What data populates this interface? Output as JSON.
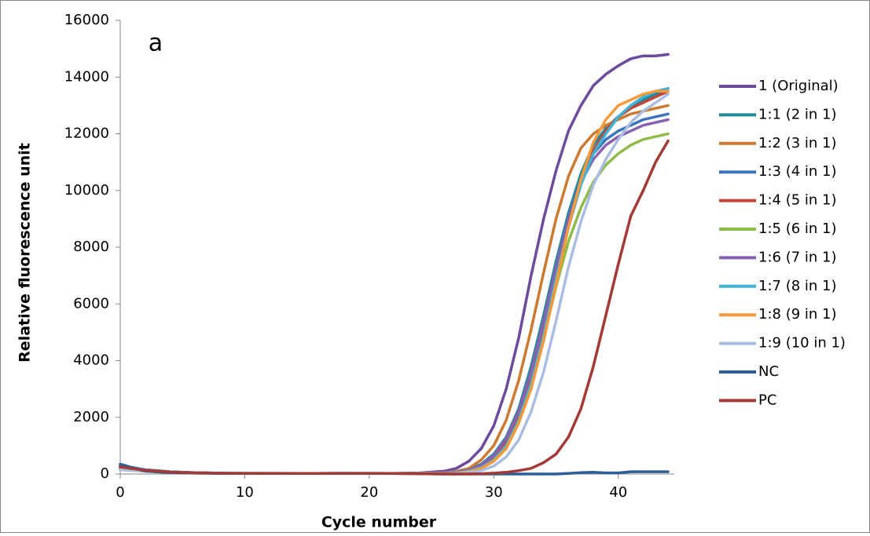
{
  "chart_data": {
    "type": "line",
    "annotation": "a",
    "xlabel": "Cycle number",
    "ylabel": "Relative fluorescence unit",
    "xlim": [
      0,
      44.5
    ],
    "xticks": [
      0,
      10,
      20,
      30,
      40
    ],
    "ylim": [
      0,
      16000
    ],
    "yticks": [
      0,
      2000,
      4000,
      6000,
      8000,
      10000,
      12000,
      14000,
      16000
    ],
    "grid": false,
    "legend": "right",
    "x": [
      0,
      2,
      4,
      6,
      8,
      10,
      12,
      14,
      16,
      18,
      20,
      22,
      24,
      26,
      27,
      28,
      29,
      30,
      31,
      32,
      33,
      34,
      35,
      36,
      37,
      38,
      39,
      40,
      41,
      42,
      43,
      44
    ],
    "series": [
      {
        "name": "1 (Original)",
        "color": "#6c4a9c",
        "values": [
          250,
          150,
          80,
          40,
          30,
          20,
          20,
          20,
          20,
          30,
          20,
          20,
          40,
          100,
          200,
          450,
          900,
          1700,
          3000,
          4800,
          7000,
          9000,
          10700,
          12100,
          13000,
          13700,
          14100,
          14400,
          14650,
          14750,
          14750,
          14800
        ]
      },
      {
        "name": "1:1 (2 in 1)",
        "color": "#1f8a9c",
        "values": [
          300,
          150,
          80,
          50,
          30,
          30,
          20,
          20,
          20,
          20,
          20,
          20,
          20,
          30,
          60,
          150,
          350,
          700,
          1300,
          2300,
          3800,
          5600,
          7500,
          9200,
          10600,
          11600,
          12200,
          12600,
          12900,
          13200,
          13400,
          13600
        ]
      },
      {
        "name": "1:2 (3 in 1)",
        "color": "#cc7a30",
        "values": [
          280,
          140,
          70,
          40,
          30,
          20,
          20,
          20,
          20,
          20,
          20,
          20,
          30,
          40,
          90,
          200,
          500,
          1000,
          1900,
          3300,
          5100,
          7100,
          9000,
          10500,
          11500,
          12000,
          12300,
          12500,
          12700,
          12800,
          12900,
          13000
        ]
      },
      {
        "name": "1:3 (4 in 1)",
        "color": "#3a76bd",
        "values": [
          300,
          150,
          80,
          50,
          30,
          20,
          20,
          20,
          20,
          20,
          20,
          20,
          20,
          30,
          60,
          130,
          300,
          600,
          1200,
          2100,
          3500,
          5300,
          7300,
          9000,
          10400,
          11300,
          11800,
          12100,
          12300,
          12500,
          12600,
          12700
        ]
      },
      {
        "name": "1:4 (5 in 1)",
        "color": "#c4443c",
        "values": [
          200,
          120,
          60,
          40,
          30,
          20,
          20,
          20,
          20,
          20,
          20,
          20,
          20,
          20,
          40,
          100,
          250,
          550,
          1100,
          2000,
          3300,
          5000,
          7000,
          8800,
          10300,
          11400,
          12100,
          12600,
          12900,
          13100,
          13300,
          13500
        ]
      },
      {
        "name": "1:5 (6 in 1)",
        "color": "#8fbb48",
        "values": [
          150,
          100,
          60,
          40,
          30,
          20,
          20,
          20,
          20,
          20,
          20,
          20,
          20,
          20,
          40,
          90,
          200,
          450,
          900,
          1800,
          3100,
          4800,
          6600,
          8200,
          9400,
          10300,
          10900,
          11300,
          11600,
          11800,
          11900,
          12000
        ]
      },
      {
        "name": "1:6 (7 in 1)",
        "color": "#8662b0",
        "values": [
          200,
          120,
          70,
          40,
          30,
          20,
          20,
          20,
          20,
          20,
          20,
          20,
          20,
          30,
          60,
          140,
          320,
          650,
          1250,
          2200,
          3600,
          5400,
          7300,
          9000,
          10300,
          11100,
          11600,
          11900,
          12100,
          12300,
          12400,
          12500
        ]
      },
      {
        "name": "1:7 (8 in 1)",
        "color": "#42b2d2",
        "values": [
          180,
          110,
          60,
          40,
          30,
          20,
          20,
          20,
          20,
          20,
          20,
          20,
          20,
          20,
          40,
          100,
          230,
          500,
          1000,
          1900,
          3200,
          4900,
          6900,
          8700,
          10200,
          11300,
          12000,
          12600,
          13000,
          13300,
          13500,
          13600
        ]
      },
      {
        "name": "1:8 (9 in 1)",
        "color": "#f5993b",
        "values": [
          220,
          130,
          70,
          40,
          30,
          20,
          20,
          20,
          20,
          20,
          20,
          20,
          20,
          20,
          30,
          80,
          200,
          450,
          900,
          1800,
          3000,
          4700,
          6700,
          8700,
          10400,
          11700,
          12500,
          13000,
          13200,
          13400,
          13500,
          13500
        ]
      },
      {
        "name": "1:9 (10 in 1)",
        "color": "#a9bde0",
        "values": [
          150,
          100,
          60,
          40,
          30,
          30,
          30,
          20,
          20,
          30,
          30,
          20,
          20,
          10,
          20,
          50,
          120,
          280,
          600,
          1200,
          2200,
          3600,
          5400,
          7300,
          8900,
          10200,
          11100,
          11800,
          12400,
          12800,
          13100,
          13400
        ]
      },
      {
        "name": "NC",
        "color": "#2e5e98",
        "values": [
          350,
          100,
          50,
          30,
          20,
          20,
          20,
          20,
          20,
          20,
          20,
          20,
          10,
          0,
          0,
          0,
          0,
          0,
          0,
          0,
          0,
          0,
          0,
          20,
          50,
          60,
          40,
          40,
          80,
          80,
          80,
          80
        ]
      },
      {
        "name": "PC",
        "color": "#a33a35",
        "values": [
          250,
          130,
          70,
          40,
          30,
          20,
          20,
          20,
          20,
          20,
          20,
          20,
          10,
          0,
          0,
          0,
          10,
          30,
          60,
          120,
          200,
          400,
          700,
          1300,
          2300,
          3800,
          5600,
          7400,
          9100,
          10000,
          11000,
          11750
        ]
      }
    ]
  }
}
